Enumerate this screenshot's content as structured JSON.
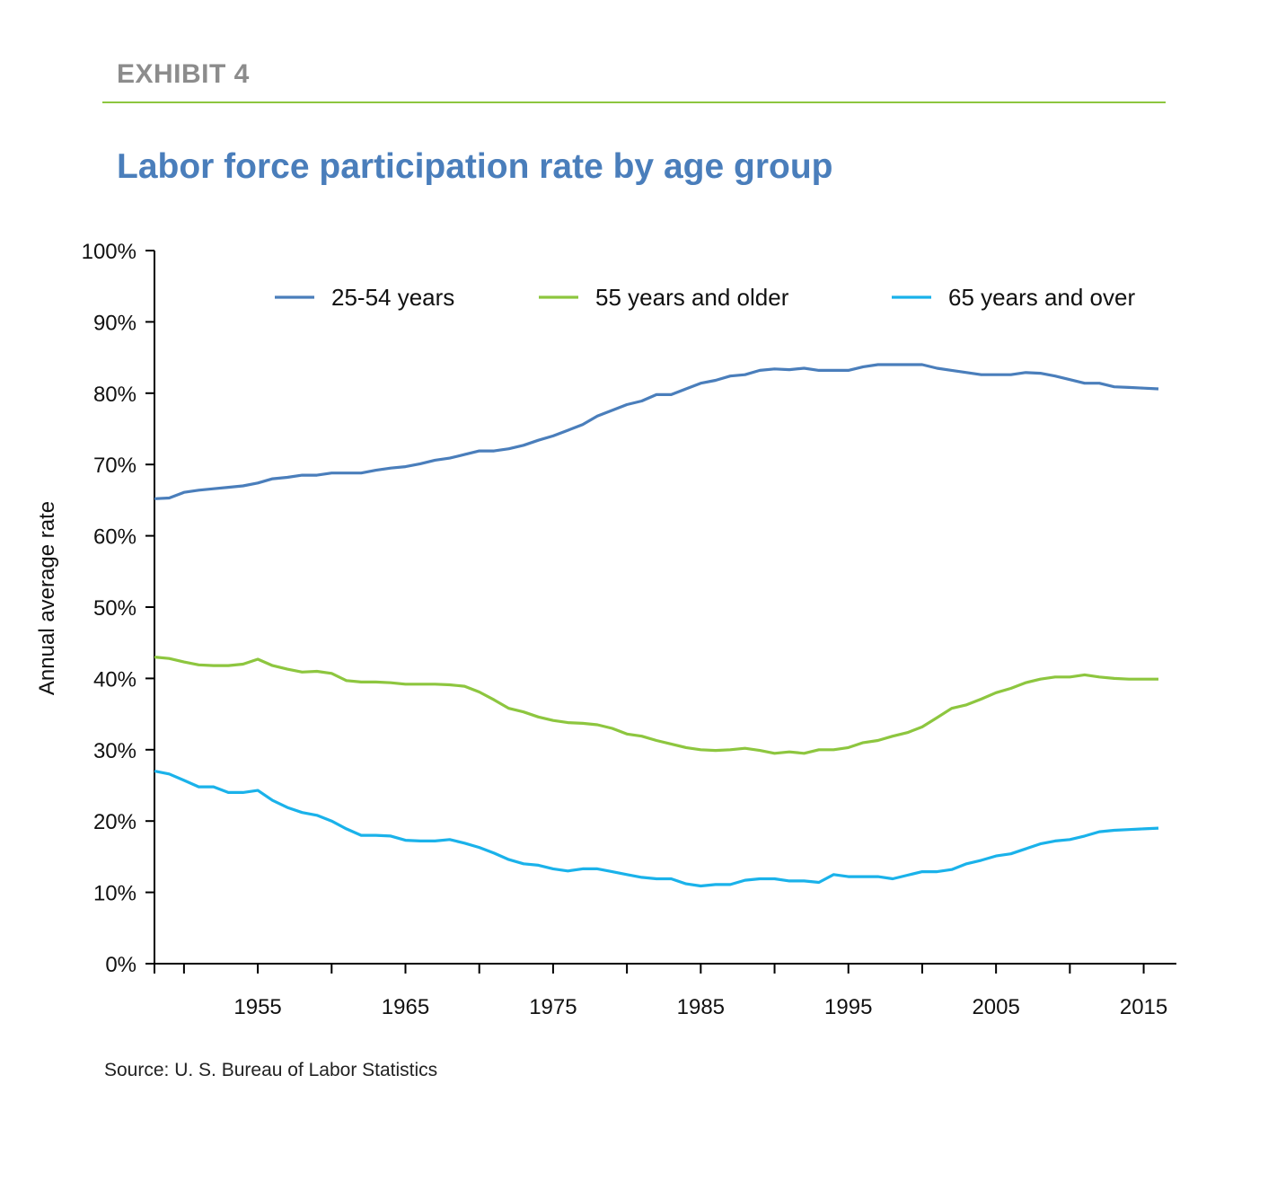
{
  "header": {
    "exhibit": "EXHIBIT 4",
    "title": "Labor force participation rate by age group"
  },
  "source": "Source: U. S. Bureau of Labor Statistics",
  "colors": {
    "accent_rule": "#8dc63f",
    "title": "#4a7ebb"
  },
  "chart_data": {
    "type": "line",
    "title": "Labor force participation rate by age group",
    "xlabel": "",
    "ylabel": "Annual average rate",
    "xlim": [
      1948,
      2016
    ],
    "ylim": [
      0,
      100
    ],
    "x_ticks": [
      1955,
      1965,
      1975,
      1985,
      1995,
      2005,
      2015
    ],
    "y_ticks": [
      0,
      10,
      20,
      30,
      40,
      50,
      60,
      70,
      80,
      90,
      100
    ],
    "y_tick_labels": [
      "0%",
      "10%",
      "20%",
      "30%",
      "40%",
      "50%",
      "60%",
      "70%",
      "80%",
      "90%",
      "100%"
    ],
    "grid": false,
    "legend": "top",
    "x": [
      1948,
      1949,
      1950,
      1951,
      1952,
      1953,
      1954,
      1955,
      1956,
      1957,
      1958,
      1959,
      1960,
      1961,
      1962,
      1963,
      1964,
      1965,
      1966,
      1967,
      1968,
      1969,
      1970,
      1971,
      1972,
      1973,
      1974,
      1975,
      1976,
      1977,
      1978,
      1979,
      1980,
      1981,
      1982,
      1983,
      1984,
      1985,
      1986,
      1987,
      1988,
      1989,
      1990,
      1991,
      1992,
      1993,
      1994,
      1995,
      1996,
      1997,
      1998,
      1999,
      2000,
      2001,
      2002,
      2003,
      2004,
      2005,
      2006,
      2007,
      2008,
      2009,
      2010,
      2011,
      2012,
      2013,
      2014,
      2015,
      2016
    ],
    "series": [
      {
        "name": "25-54 years",
        "color": "#4a7ebb",
        "values": [
          65.2,
          65.3,
          66.1,
          66.4,
          66.6,
          66.8,
          67.0,
          67.4,
          68.0,
          68.2,
          68.5,
          68.5,
          68.8,
          68.8,
          68.8,
          69.2,
          69.5,
          69.7,
          70.1,
          70.6,
          70.9,
          71.4,
          71.9,
          71.9,
          72.2,
          72.7,
          73.4,
          74.0,
          74.8,
          75.6,
          76.8,
          77.6,
          78.4,
          78.9,
          79.8,
          79.8,
          80.6,
          81.4,
          81.8,
          82.4,
          82.6,
          83.2,
          83.4,
          83.3,
          83.5,
          83.2,
          83.2,
          83.2,
          83.7,
          84.0,
          84.0,
          84.0,
          84.0,
          83.5,
          83.2,
          82.9,
          82.6,
          82.6,
          82.6,
          82.9,
          82.8,
          82.4,
          81.9,
          81.4,
          81.4,
          80.9,
          80.8,
          80.7,
          80.6
        ]
      },
      {
        "name": "55 years and older",
        "color": "#8dc63f",
        "values": [
          43.0,
          42.8,
          42.3,
          41.9,
          41.8,
          41.8,
          42.0,
          42.7,
          41.8,
          41.3,
          40.9,
          41.0,
          40.7,
          39.7,
          39.5,
          39.5,
          39.4,
          39.2,
          39.2,
          39.2,
          39.1,
          38.9,
          38.1,
          37.0,
          35.8,
          35.3,
          34.6,
          34.1,
          33.8,
          33.7,
          33.5,
          33.0,
          32.2,
          31.9,
          31.3,
          30.8,
          30.3,
          30.0,
          29.9,
          30.0,
          30.2,
          29.9,
          29.5,
          29.7,
          29.5,
          30.0,
          30.0,
          30.3,
          31.0,
          31.3,
          31.9,
          32.4,
          33.2,
          34.5,
          35.8,
          36.3,
          37.1,
          38.0,
          38.6,
          39.4,
          39.9,
          40.2,
          40.2,
          40.5,
          40.2,
          40.0,
          39.9,
          39.9,
          39.9
        ]
      },
      {
        "name": "65 years and over",
        "color": "#1ab2ea",
        "values": [
          27.0,
          26.6,
          25.7,
          24.8,
          24.8,
          24.0,
          24.0,
          24.3,
          22.9,
          21.9,
          21.2,
          20.8,
          20.0,
          18.9,
          18.0,
          18.0,
          17.9,
          17.3,
          17.2,
          17.2,
          17.4,
          16.9,
          16.3,
          15.5,
          14.6,
          14.0,
          13.8,
          13.3,
          13.0,
          13.3,
          13.3,
          12.9,
          12.5,
          12.1,
          11.9,
          11.9,
          11.2,
          10.9,
          11.1,
          11.1,
          11.7,
          11.9,
          11.9,
          11.6,
          11.6,
          11.4,
          12.5,
          12.2,
          12.2,
          12.2,
          11.9,
          12.4,
          12.9,
          12.9,
          13.2,
          14.0,
          14.5,
          15.1,
          15.4,
          16.1,
          16.8,
          17.2,
          17.4,
          17.9,
          18.5,
          18.7,
          18.8,
          18.9,
          19.0
        ]
      }
    ]
  }
}
